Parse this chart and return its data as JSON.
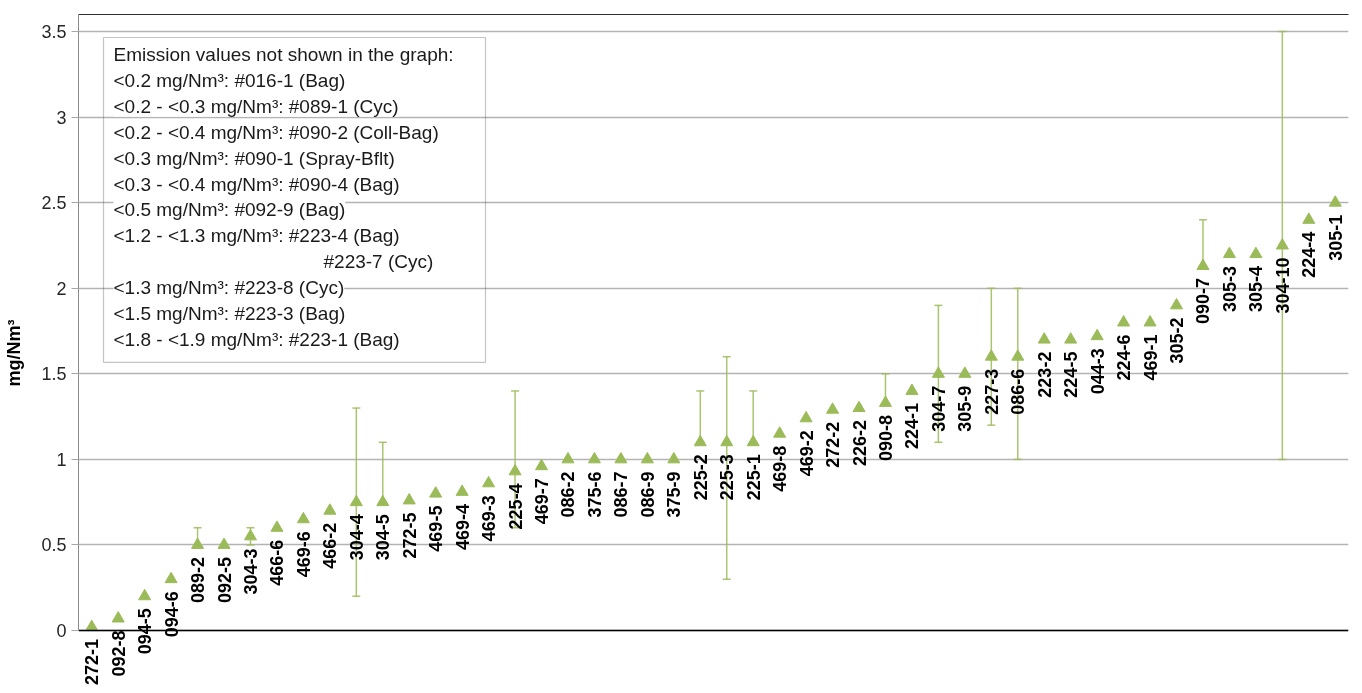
{
  "chart_data": {
    "type": "scatter",
    "ylabel": "mg/Nm³",
    "annotations": [
      "Emission values not shown in the graph:",
      "<0.2 mg/Nm³: #016-1 (Bag)",
      "<0.2 - <0.3 mg/Nm³: #089-1 (Cyc)",
      "<0.2 - <0.4 mg/Nm³: #090-2 (Coll-Bag)",
      "<0.3 mg/Nm³: #090-1 (Spray-Bflt)",
      "<0.3 - <0.4 mg/Nm³: #090-4 (Bag)",
      "<0.5 mg/Nm³: #092-9 (Bag)",
      "<1.2 - <1.3 mg/Nm³: #223-4 (Bag)\n#223-7 (Cyc)",
      "<1.3 mg/Nm³: #223-8 (Cyc)",
      "<1.5 mg/Nm³: #223-3 (Bag)",
      "<1.8 - <1.9 mg/Nm³: #223-1 (Bag)"
    ],
    "categories": [
      "272-1",
      "092-8",
      "094-5",
      "094-6",
      "089-2",
      "092-5",
      "304-3",
      "466-6",
      "469-6",
      "466-2",
      "304-4",
      "304-5",
      "272-5",
      "469-5",
      "469-4",
      "469-3",
      "225-4",
      "469-7",
      "086-2",
      "375-6",
      "086-7",
      "086-9",
      "375-9",
      "225-2",
      "225-3",
      "225-1",
      "469-8",
      "469-2",
      "272-2",
      "226-2",
      "090-8",
      "224-1",
      "304-7",
      "305-9",
      "227-3",
      "086-6",
      "223-2",
      "224-5",
      "044-3",
      "224-6",
      "469-1",
      "305-2",
      "090-7",
      "305-3",
      "305-4",
      "304-10",
      "224-4",
      "305-1"
    ],
    "values": [
      0.02,
      0.07,
      0.2,
      0.3,
      0.5,
      0.5,
      0.55,
      0.6,
      0.65,
      0.7,
      0.75,
      0.75,
      0.76,
      0.8,
      0.81,
      0.86,
      0.93,
      0.96,
      1.0,
      1.0,
      1.0,
      1.0,
      1.0,
      1.1,
      1.1,
      1.1,
      1.15,
      1.24,
      1.29,
      1.3,
      1.33,
      1.4,
      1.5,
      1.5,
      1.6,
      1.6,
      1.7,
      1.7,
      1.72,
      1.8,
      1.8,
      1.9,
      2.13,
      2.2,
      2.2,
      2.25,
      2.4,
      2.5
    ],
    "errors": [
      null,
      null,
      null,
      null,
      [
        0.5,
        0.6
      ],
      null,
      [
        0.5,
        0.6
      ],
      null,
      null,
      null,
      [
        0.2,
        1.3
      ],
      [
        0.75,
        1.1
      ],
      null,
      null,
      null,
      null,
      [
        0.6,
        1.4
      ],
      null,
      null,
      null,
      null,
      null,
      null,
      [
        1.1,
        1.4
      ],
      [
        0.3,
        1.6
      ],
      [
        1.1,
        1.4
      ],
      null,
      null,
      null,
      null,
      [
        1.33,
        1.5
      ],
      null,
      [
        1.1,
        1.9
      ],
      null,
      [
        1.2,
        2.0
      ],
      [
        1.0,
        2.0
      ],
      null,
      null,
      null,
      null,
      null,
      null,
      [
        2.13,
        2.4
      ],
      null,
      null,
      [
        1.0,
        3.5
      ],
      null,
      null
    ],
    "color": "#9bbb59",
    "marker": "triangle",
    "ylim": [
      0,
      3.6
    ],
    "yticks": [
      0,
      0.5,
      1,
      1.5,
      2,
      2.5,
      3,
      3.5
    ],
    "grid": "y"
  }
}
